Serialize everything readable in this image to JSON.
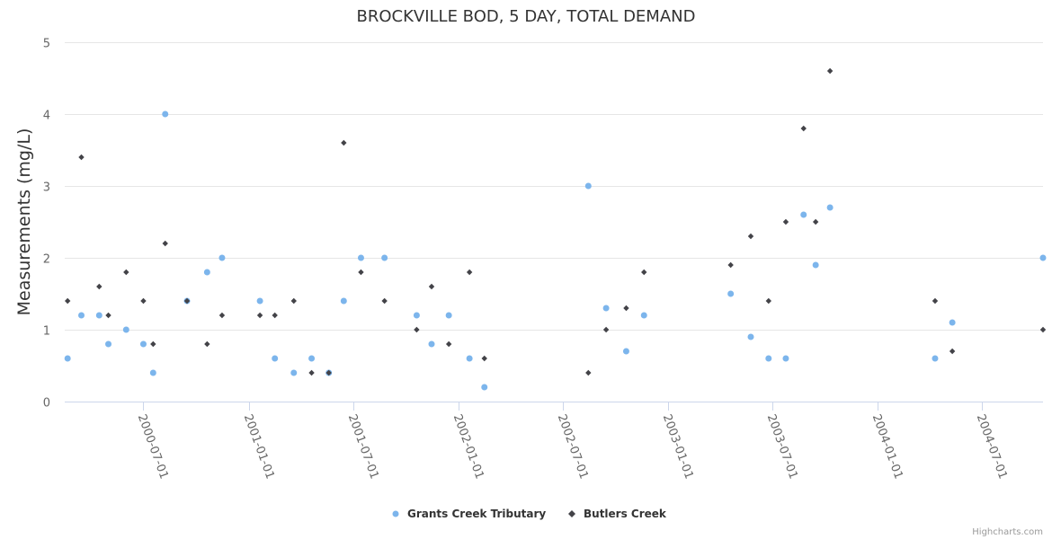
{
  "chart_data": {
    "type": "scatter",
    "title": "BROCKVILLE BOD, 5 DAY, TOTAL DEMAND",
    "xlabel": "",
    "ylabel": "Measurements (mg/L)",
    "ylim": [
      0,
      5
    ],
    "y_ticks": [
      0,
      1,
      2,
      3,
      4,
      5
    ],
    "xlim": [
      "2000-02-15",
      "2004-10-15"
    ],
    "x_ticks": [
      "2000-07-01",
      "2001-01-01",
      "2001-07-01",
      "2002-01-01",
      "2002-07-01",
      "2003-01-01",
      "2003-07-01",
      "2004-01-01",
      "2004-07-01"
    ],
    "grid": true,
    "legend_position": "bottom-center",
    "series": [
      {
        "name": "Grants Creek Tributary",
        "color": "#7cb5ec",
        "marker": "circle",
        "points": [
          [
            "2000-02-20",
            0.6
          ],
          [
            "2000-03-15",
            1.2
          ],
          [
            "2000-04-15",
            1.2
          ],
          [
            "2000-05-01",
            0.8
          ],
          [
            "2000-06-01",
            1.0
          ],
          [
            "2000-07-01",
            0.8
          ],
          [
            "2000-07-18",
            0.4
          ],
          [
            "2000-08-08",
            4.0
          ],
          [
            "2000-09-15",
            1.4
          ],
          [
            "2000-10-20",
            1.8
          ],
          [
            "2000-11-15",
            2.0
          ],
          [
            "2001-01-20",
            1.4
          ],
          [
            "2001-02-15",
            0.6
          ],
          [
            "2001-03-20",
            0.4
          ],
          [
            "2001-04-20",
            0.6
          ],
          [
            "2001-05-20",
            0.4
          ],
          [
            "2001-06-15",
            1.4
          ],
          [
            "2001-07-15",
            2.0
          ],
          [
            "2001-08-25",
            2.0
          ],
          [
            "2001-10-20",
            1.2
          ],
          [
            "2001-11-15",
            0.8
          ],
          [
            "2001-12-15",
            1.2
          ],
          [
            "2002-01-20",
            0.6
          ],
          [
            "2002-02-15",
            0.2
          ],
          [
            "2002-08-15",
            3.0
          ],
          [
            "2002-09-15",
            1.3
          ],
          [
            "2002-10-20",
            0.7
          ],
          [
            "2002-11-20",
            1.2
          ],
          [
            "2003-04-20",
            1.5
          ],
          [
            "2003-05-25",
            0.9
          ],
          [
            "2003-06-25",
            0.6
          ],
          [
            "2003-07-25",
            0.6
          ],
          [
            "2003-08-25",
            2.6
          ],
          [
            "2003-09-15",
            1.9
          ],
          [
            "2003-10-10",
            2.7
          ],
          [
            "2004-04-10",
            0.6
          ],
          [
            "2004-05-10",
            1.1
          ],
          [
            "2004-10-15",
            2.0
          ]
        ]
      },
      {
        "name": "Butlers Creek",
        "color": "#434348",
        "marker": "diamond",
        "points": [
          [
            "2000-02-20",
            1.4
          ],
          [
            "2000-03-15",
            3.4
          ],
          [
            "2000-04-15",
            1.6
          ],
          [
            "2000-05-01",
            1.2
          ],
          [
            "2000-06-01",
            1.8
          ],
          [
            "2000-07-01",
            1.4
          ],
          [
            "2000-07-18",
            0.8
          ],
          [
            "2000-08-08",
            2.2
          ],
          [
            "2000-09-15",
            1.4
          ],
          [
            "2000-10-20",
            0.8
          ],
          [
            "2000-11-15",
            1.2
          ],
          [
            "2001-01-20",
            1.2
          ],
          [
            "2001-02-15",
            1.2
          ],
          [
            "2001-03-20",
            1.4
          ],
          [
            "2001-04-20",
            0.4
          ],
          [
            "2001-05-20",
            0.4
          ],
          [
            "2001-06-15",
            3.6
          ],
          [
            "2001-07-15",
            1.8
          ],
          [
            "2001-08-25",
            1.4
          ],
          [
            "2001-10-20",
            1.0
          ],
          [
            "2001-11-15",
            1.6
          ],
          [
            "2001-12-15",
            0.8
          ],
          [
            "2002-01-20",
            1.8
          ],
          [
            "2002-02-15",
            0.6
          ],
          [
            "2002-08-15",
            0.4
          ],
          [
            "2002-09-15",
            1.0
          ],
          [
            "2002-10-20",
            1.3
          ],
          [
            "2002-11-20",
            1.8
          ],
          [
            "2003-04-20",
            1.9
          ],
          [
            "2003-05-25",
            2.3
          ],
          [
            "2003-06-25",
            1.4
          ],
          [
            "2003-07-25",
            2.5
          ],
          [
            "2003-08-25",
            3.8
          ],
          [
            "2003-09-15",
            2.5
          ],
          [
            "2003-10-10",
            4.6
          ],
          [
            "2004-04-10",
            1.4
          ],
          [
            "2004-05-10",
            0.7
          ],
          [
            "2004-10-15",
            1.0
          ]
        ]
      }
    ]
  },
  "credits": "Highcharts.com"
}
